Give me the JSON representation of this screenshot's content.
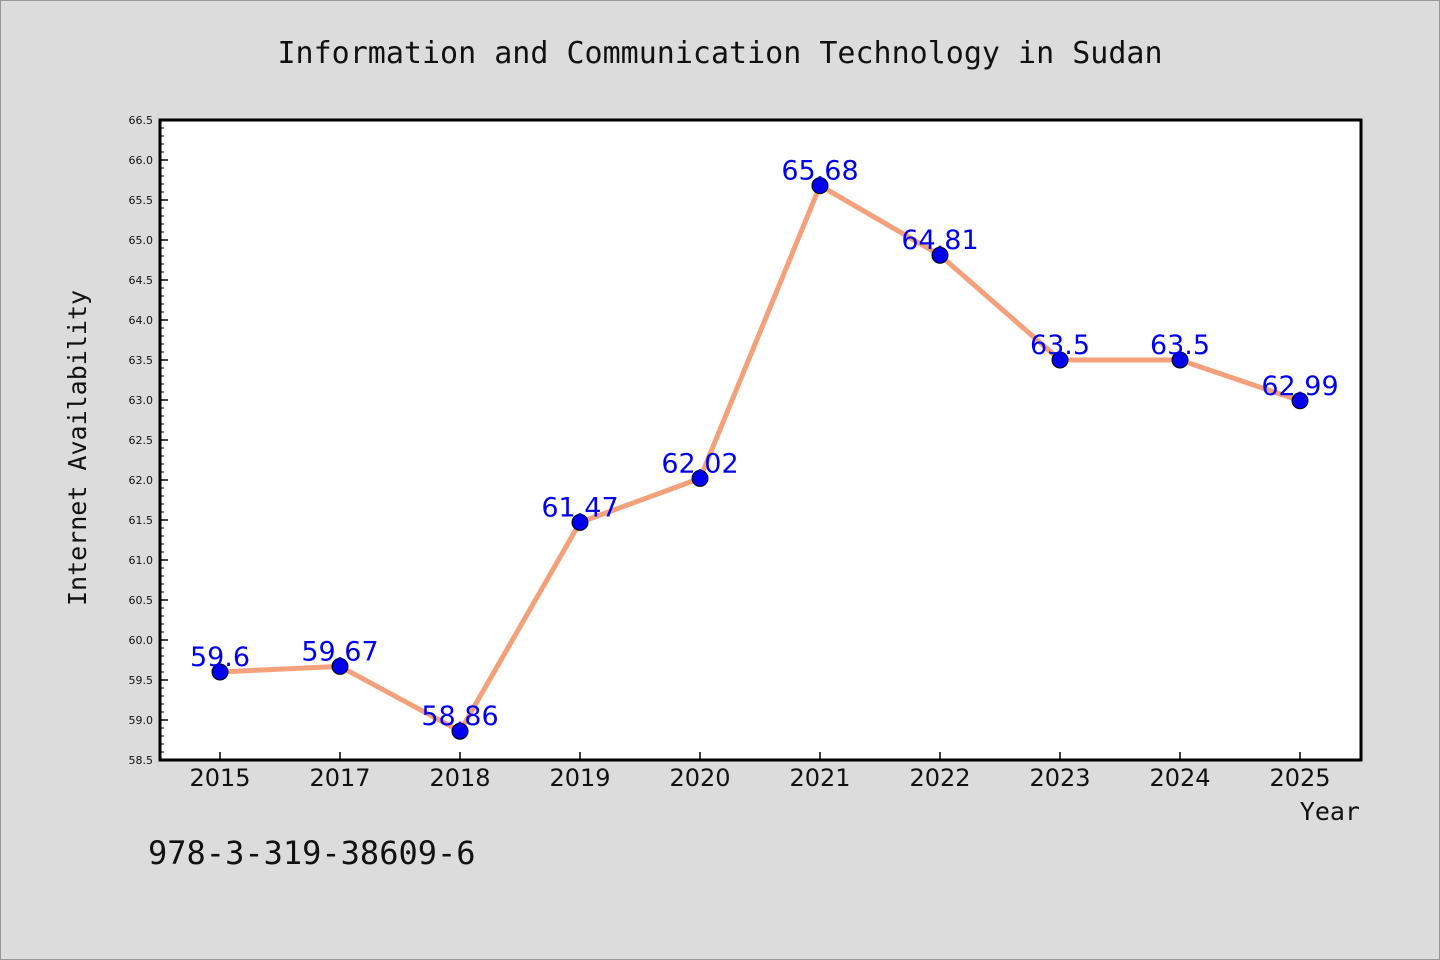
{
  "chart_data": {
    "type": "line",
    "title": "Information and Communication Technology in Sudan",
    "xlabel": "Year",
    "ylabel": "Internet Availability",
    "categories": [
      "2015",
      "2017",
      "2018",
      "2019",
      "2020",
      "2021",
      "2022",
      "2023",
      "2024",
      "2025"
    ],
    "values": [
      59.6,
      59.67,
      58.86,
      61.47,
      62.02,
      65.68,
      64.81,
      63.5,
      63.5,
      62.99
    ],
    "data_labels": [
      "59.6",
      "59.67",
      "58.86",
      "61.47",
      "62.02",
      "65.68",
      "64.81",
      "63.5",
      "63.5",
      "62.99"
    ],
    "ylim": [
      58.5,
      66.5
    ],
    "y_ticks": [
      "58.5",
      "59.0",
      "59.5",
      "60.0",
      "60.5",
      "61.0",
      "61.5",
      "62.0",
      "62.5",
      "63.0",
      "63.5",
      "64.0",
      "64.5",
      "65.0",
      "65.5",
      "66.0",
      "66.5"
    ],
    "grid": false,
    "line_color": "#f4a07a",
    "marker_color": "#0000ee",
    "label_color": "#0000ee"
  },
  "annotation": "978-3-319-38609-6"
}
